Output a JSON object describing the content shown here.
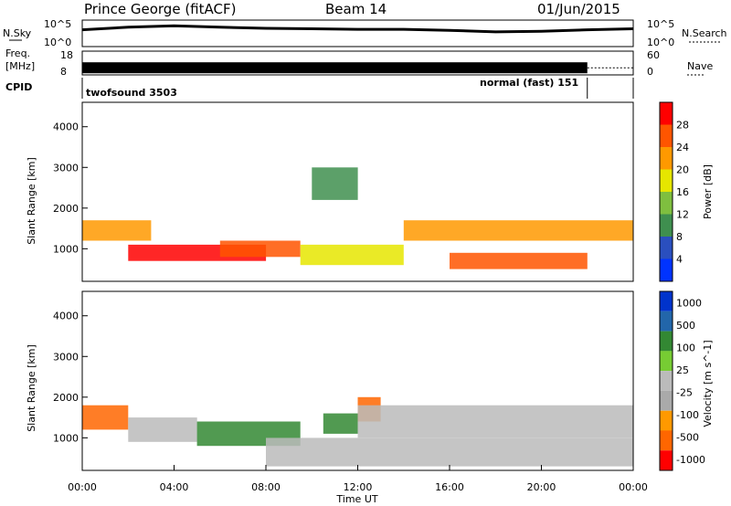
{
  "header": {
    "station": "Prince George (fitACF)",
    "beam": "Beam 14",
    "date": "01/Jun/2015"
  },
  "left_labels": {
    "nsky": "N.Sky",
    "freq_line1": "Freq.",
    "freq_line2": "[MHz]",
    "cpid": "CPID"
  },
  "right_labels": {
    "nsearch": "N.Search",
    "nave": "Nave"
  },
  "time_axis": {
    "label": "Time UT",
    "ticks": [
      "00:00",
      "04:00",
      "08:00",
      "12:00",
      "16:00",
      "20:00",
      "00:00"
    ]
  },
  "colors": {
    "power_scale": [
      "#0033ff",
      "#2a4fbf",
      "#3f8f4f",
      "#7fbf3f",
      "#e6e600",
      "#ff9900",
      "#ff5500",
      "#ff0000"
    ],
    "velocity_scale": [
      "#0033cc",
      "#2266aa",
      "#338833",
      "#77cc33",
      "#bbbbbb",
      "#aaaaaa",
      "#ff9900",
      "#ff6600",
      "#ff0000"
    ]
  },
  "chart_data": [
    {
      "type": "line",
      "title": "N.Sky / N.Search",
      "ylabel_left": "N.Sky",
      "ylabel_right": "N.Search",
      "left_ticks": [
        "10^5",
        "10^0"
      ],
      "right_ticks": [
        "10^5",
        "10^0"
      ],
      "x_hours": [
        0,
        2,
        4,
        6,
        8,
        10,
        12,
        14,
        16,
        18,
        20,
        22,
        24
      ],
      "series": [
        {
          "name": "N.Sky",
          "values": [
            3.1,
            3.6,
            3.9,
            3.6,
            3.4,
            3.3,
            3.2,
            3.2,
            3.0,
            2.7,
            2.8,
            3.1,
            3.3
          ]
        }
      ],
      "ylim": [
        0,
        5
      ]
    },
    {
      "type": "line",
      "title": "Freq / Nave",
      "ylabel_left": "Freq. [MHz]",
      "ylabel_right": "Nave",
      "left_ticks": [
        "18",
        "8"
      ],
      "right_ticks": [
        "60",
        "0"
      ],
      "x_hours": [
        0,
        22,
        24
      ],
      "series": [
        {
          "name": "Freq",
          "values": [
            11,
            11,
            11
          ]
        },
        {
          "name": "Nave",
          "values": [
            20,
            20,
            20
          ]
        }
      ],
      "ylim": [
        8,
        18
      ]
    },
    {
      "type": "table",
      "title": "CPID",
      "segments": [
        {
          "label": "twofsound 3503",
          "start_hour": 0,
          "end_hour": 22
        },
        {
          "label": "normal (fast) 151",
          "start_hour": 22,
          "end_hour": 24
        }
      ]
    },
    {
      "type": "heatmap",
      "title": "Power",
      "xlabel": "Time UT",
      "ylabel": "Slant Range [km]",
      "ylim": [
        200,
        4600
      ],
      "y_ticks": [
        1000,
        2000,
        3000,
        4000
      ],
      "colorbar": {
        "label": "Power [dB]",
        "ticks": [
          4,
          8,
          12,
          16,
          20,
          24,
          28
        ]
      },
      "bands": [
        {
          "hours": [
            0,
            3
          ],
          "range_km": [
            1200,
            1700
          ],
          "level_db": 20
        },
        {
          "hours": [
            2,
            8
          ],
          "range_km": [
            700,
            1100
          ],
          "level_db": 26
        },
        {
          "hours": [
            6,
            9.5
          ],
          "range_km": [
            800,
            1200
          ],
          "level_db": 24
        },
        {
          "hours": [
            9.5,
            14
          ],
          "range_km": [
            600,
            1100
          ],
          "level_db": 14
        },
        {
          "hours": [
            14,
            24
          ],
          "range_km": [
            1200,
            1700
          ],
          "level_db": 18
        },
        {
          "hours": [
            16,
            22
          ],
          "range_km": [
            500,
            900
          ],
          "level_db": 24
        },
        {
          "hours": [
            10,
            12
          ],
          "range_km": [
            2200,
            3000
          ],
          "level_db": 6
        }
      ]
    },
    {
      "type": "heatmap",
      "title": "Velocity",
      "xlabel": "Time UT",
      "ylabel": "Slant Range [km]",
      "ylim": [
        200,
        4600
      ],
      "y_ticks": [
        1000,
        2000,
        3000,
        4000
      ],
      "colorbar": {
        "label": "Velocity [m s^-1]",
        "ticks": [
          1000,
          500,
          100,
          25,
          -25,
          -100,
          -500,
          -1000
        ]
      },
      "bands": [
        {
          "hours": [
            0,
            2
          ],
          "range_km": [
            1200,
            1800
          ],
          "velocity": -120
        },
        {
          "hours": [
            2,
            5
          ],
          "range_km": [
            900,
            1500
          ],
          "velocity": 0
        },
        {
          "hours": [
            5,
            9.5
          ],
          "range_km": [
            800,
            1400
          ],
          "velocity": 80
        },
        {
          "hours": [
            10.5,
            12
          ],
          "range_km": [
            1100,
            1600
          ],
          "velocity": 80
        },
        {
          "hours": [
            12,
            13
          ],
          "range_km": [
            1400,
            2000
          ],
          "velocity": -120
        },
        {
          "hours": [
            12,
            24
          ],
          "range_km": [
            1000,
            1800
          ],
          "velocity": 0
        },
        {
          "hours": [
            8,
            24
          ],
          "range_km": [
            300,
            1000
          ],
          "velocity": 0
        }
      ]
    }
  ]
}
